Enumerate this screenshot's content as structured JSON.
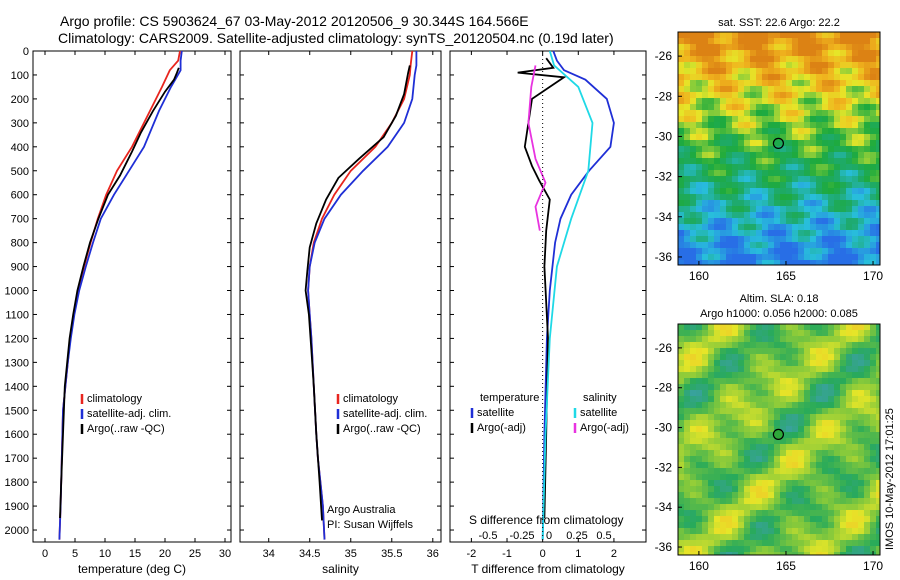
{
  "header": {
    "line1": "Argo profile: CS 5903624_67 03-May-2012 20120506_9 30.344S 164.566E",
    "line2": "Climatology: CARS2009. Satellite-adjusted climatology: synTS_20120504.nc (0.19d later)"
  },
  "credit": "Argo Australia",
  "pi": "PI: Susan Wijffels",
  "imos_stamp": "IMOS 10-May-2012 17:01:25",
  "colors": {
    "climatology": "#e8251e",
    "satellite": "#1f2fd6",
    "argo": "#000000",
    "satellite_diff": "#1fd9e6",
    "argo_s_diff": "#e833e0"
  },
  "chart_data": [
    {
      "type": "line",
      "name": "temperature-profile",
      "xlabel": "temperature (deg C)",
      "xticks": [
        0,
        5,
        10,
        15,
        20,
        25,
        30
      ],
      "xlim": [
        -2,
        31
      ],
      "yticks": [
        0,
        100,
        200,
        300,
        400,
        500,
        600,
        700,
        800,
        900,
        1000,
        1100,
        1200,
        1300,
        1400,
        1500,
        1600,
        1700,
        1800,
        1900,
        2000
      ],
      "ylim": [
        2050,
        0
      ],
      "legend": [
        "climatology",
        "satellite-adj. clim.",
        "Argo(..raw -QC)"
      ],
      "series": [
        {
          "name": "climatology",
          "x": [
            22.5,
            22.2,
            20.8,
            19.5,
            17.5,
            14.5,
            12.0,
            10.2,
            8.8,
            7.6,
            6.5,
            5.5,
            4.8,
            4.2,
            3.8,
            3.4,
            3.0,
            2.8,
            2.6,
            2.4
          ],
          "depth": [
            0,
            40,
            80,
            150,
            250,
            400,
            500,
            600,
            700,
            800,
            900,
            1000,
            1100,
            1200,
            1300,
            1400,
            1500,
            1700,
            1900,
            2040
          ]
        },
        {
          "name": "satellite-adj. clim.",
          "x": [
            22.8,
            22.6,
            22.6,
            21.0,
            19.0,
            16.5,
            14.0,
            11.5,
            9.3,
            8.0,
            6.8,
            5.7,
            4.9,
            4.3,
            3.8,
            3.4,
            3.0,
            2.8,
            2.6,
            2.4
          ],
          "depth": [
            0,
            40,
            80,
            150,
            250,
            400,
            500,
            600,
            700,
            800,
            900,
            1000,
            1100,
            1200,
            1300,
            1400,
            1500,
            1700,
            1900,
            2040
          ]
        },
        {
          "name": "Argo(..raw -QC)",
          "x": [
            22.3,
            22.0,
            21.5,
            20.0,
            18.0,
            16.0,
            14.5,
            12.5,
            10.5,
            8.9,
            7.5,
            6.4,
            5.4,
            4.7,
            4.1,
            3.7,
            3.3,
            3.0,
            2.7,
            2.5
          ],
          "depth": [
            70,
            90,
            120,
            170,
            250,
            340,
            420,
            520,
            600,
            700,
            800,
            900,
            1000,
            1100,
            1200,
            1300,
            1400,
            1600,
            1800,
            1950
          ]
        }
      ]
    },
    {
      "type": "line",
      "name": "salinity-profile",
      "xlabel": "salinity",
      "xticks": [
        34,
        34.5,
        35,
        35.5,
        36
      ],
      "xlim": [
        33.65,
        36.1
      ],
      "ylim": [
        2050,
        0
      ],
      "legend": [
        "climatology",
        "satellite-adj. clim.",
        "Argo(..raw -QC)"
      ],
      "series": [
        {
          "name": "climatology",
          "x": [
            35.75,
            35.73,
            35.72,
            35.65,
            35.5,
            35.3,
            35.0,
            34.8,
            34.65,
            34.55,
            34.5,
            34.48,
            34.5,
            34.52,
            34.55,
            34.58,
            34.6,
            34.63,
            34.66,
            34.68
          ],
          "depth": [
            0,
            60,
            100,
            200,
            300,
            400,
            500,
            600,
            700,
            800,
            900,
            1000,
            1100,
            1200,
            1400,
            1600,
            1700,
            1800,
            1900,
            2040
          ]
        },
        {
          "name": "satellite-adj. clim.",
          "x": [
            35.8,
            35.8,
            35.78,
            35.75,
            35.65,
            35.45,
            35.15,
            34.88,
            34.68,
            34.56,
            34.5,
            34.48,
            34.5,
            34.52,
            34.55,
            34.58,
            34.6,
            34.63,
            34.66,
            34.68
          ],
          "depth": [
            0,
            60,
            100,
            200,
            300,
            400,
            500,
            600,
            700,
            800,
            900,
            1000,
            1100,
            1200,
            1400,
            1600,
            1700,
            1800,
            1900,
            2040
          ]
        },
        {
          "name": "Argo(..raw -QC)",
          "x": [
            35.72,
            35.7,
            35.65,
            35.55,
            35.4,
            35.1,
            34.85,
            34.7,
            34.58,
            34.5,
            34.47,
            34.45,
            34.49,
            34.52,
            34.55,
            34.58,
            34.62,
            34.65
          ],
          "depth": [
            60,
            90,
            180,
            270,
            360,
            450,
            530,
            620,
            720,
            820,
            920,
            1000,
            1100,
            1250,
            1400,
            1600,
            1800,
            1960
          ]
        }
      ]
    },
    {
      "type": "line",
      "name": "difference-from-climatology",
      "xlabel": "T difference from climatology",
      "xlabel_top": "S difference from climatology",
      "xticks_t": [
        -2,
        -1,
        0,
        1,
        2
      ],
      "xticks_s": [
        -0.5,
        -0.25,
        0,
        0.25,
        0.5
      ],
      "xlim": [
        -2.6,
        2.9
      ],
      "ylim": [
        2050,
        0
      ],
      "legend_titles": [
        "temperature",
        "salinity"
      ],
      "legend": [
        "satellite",
        "Argo(-adj)",
        "satellite",
        "Argo(-adj)"
      ],
      "series": [
        {
          "name": "temperature satellite",
          "x": [
            0.3,
            0.4,
            0.6,
            1.2,
            1.8,
            2.0,
            1.9,
            1.3,
            0.8,
            0.5,
            0.35,
            0.2,
            0.12,
            0.05,
            0.0
          ],
          "depth": [
            0,
            40,
            80,
            120,
            200,
            300,
            400,
            500,
            600,
            700,
            800,
            1000,
            1200,
            1600,
            2040
          ]
        },
        {
          "name": "temperature Argo(-adj)",
          "x": [
            0.1,
            0.3,
            -0.7,
            0.6,
            -0.3,
            -0.5,
            -0.3,
            -0.1,
            0.2,
            0.1,
            0.05,
            0.15,
            0.1,
            0.05
          ],
          "depth": [
            30,
            70,
            90,
            110,
            200,
            400,
            480,
            540,
            620,
            750,
            900,
            1200,
            1600,
            1950
          ]
        },
        {
          "name": "salinity satellite",
          "x": [
            0.05,
            0.08,
            0.25,
            0.35,
            0.32,
            0.2,
            0.1,
            0.05,
            0.02,
            0.0
          ],
          "depth": [
            0,
            60,
            150,
            300,
            500,
            700,
            900,
            1200,
            1600,
            2040
          ]
        },
        {
          "name": "salinity Argo(-adj)",
          "x": [
            -0.05,
            -0.08,
            -0.1,
            -0.05,
            0.02,
            -0.05,
            -0.02
          ],
          "depth": [
            60,
            150,
            300,
            450,
            550,
            650,
            750
          ]
        }
      ]
    },
    {
      "type": "heatmap",
      "name": "sst-map",
      "title": "sat. SST: 22.6 Argo: 22.2",
      "xticks": [
        160,
        165,
        170
      ],
      "yticks": [
        -26,
        -28,
        -30,
        -32,
        -34,
        -36
      ],
      "xlim": [
        158.8,
        170.4
      ],
      "ylim": [
        -36.4,
        -24.8
      ],
      "marker": {
        "lon": 164.566,
        "lat": -30.344
      }
    },
    {
      "type": "heatmap",
      "name": "sla-map",
      "title": "Altim. SLA: 0.18",
      "subtitle": "Argo h1000: 0.056 h2000: 0.085",
      "xticks": [
        160,
        165,
        170
      ],
      "yticks": [
        -26,
        -28,
        -30,
        -32,
        -34,
        -36
      ],
      "xlim": [
        158.8,
        170.4
      ],
      "ylim": [
        -36.4,
        -24.8
      ],
      "marker": {
        "lon": 164.566,
        "lat": -30.344
      }
    }
  ]
}
